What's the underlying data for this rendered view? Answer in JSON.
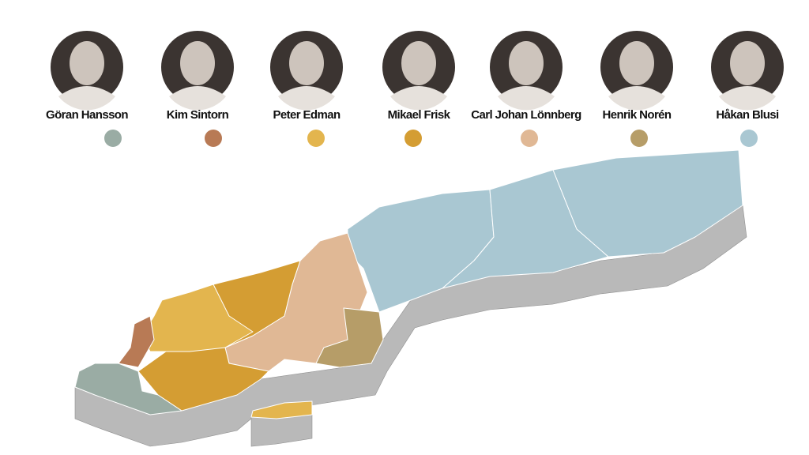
{
  "people": [
    {
      "name": "Göran Hansson",
      "color": "#9aaca4"
    },
    {
      "name": "Kim Sintorn",
      "color": "#b87a55"
    },
    {
      "name": "Peter Edman",
      "color": "#e3b54e"
    },
    {
      "name": "Mikael Frisk",
      "color": "#d49d33"
    },
    {
      "name": "Carl Johan Lönnberg",
      "color": "#e0b895"
    },
    {
      "name": "Henrik Norén",
      "color": "#b69d68"
    },
    {
      "name": "Håkan Blusi",
      "color": "#a9c7d2"
    }
  ]
}
